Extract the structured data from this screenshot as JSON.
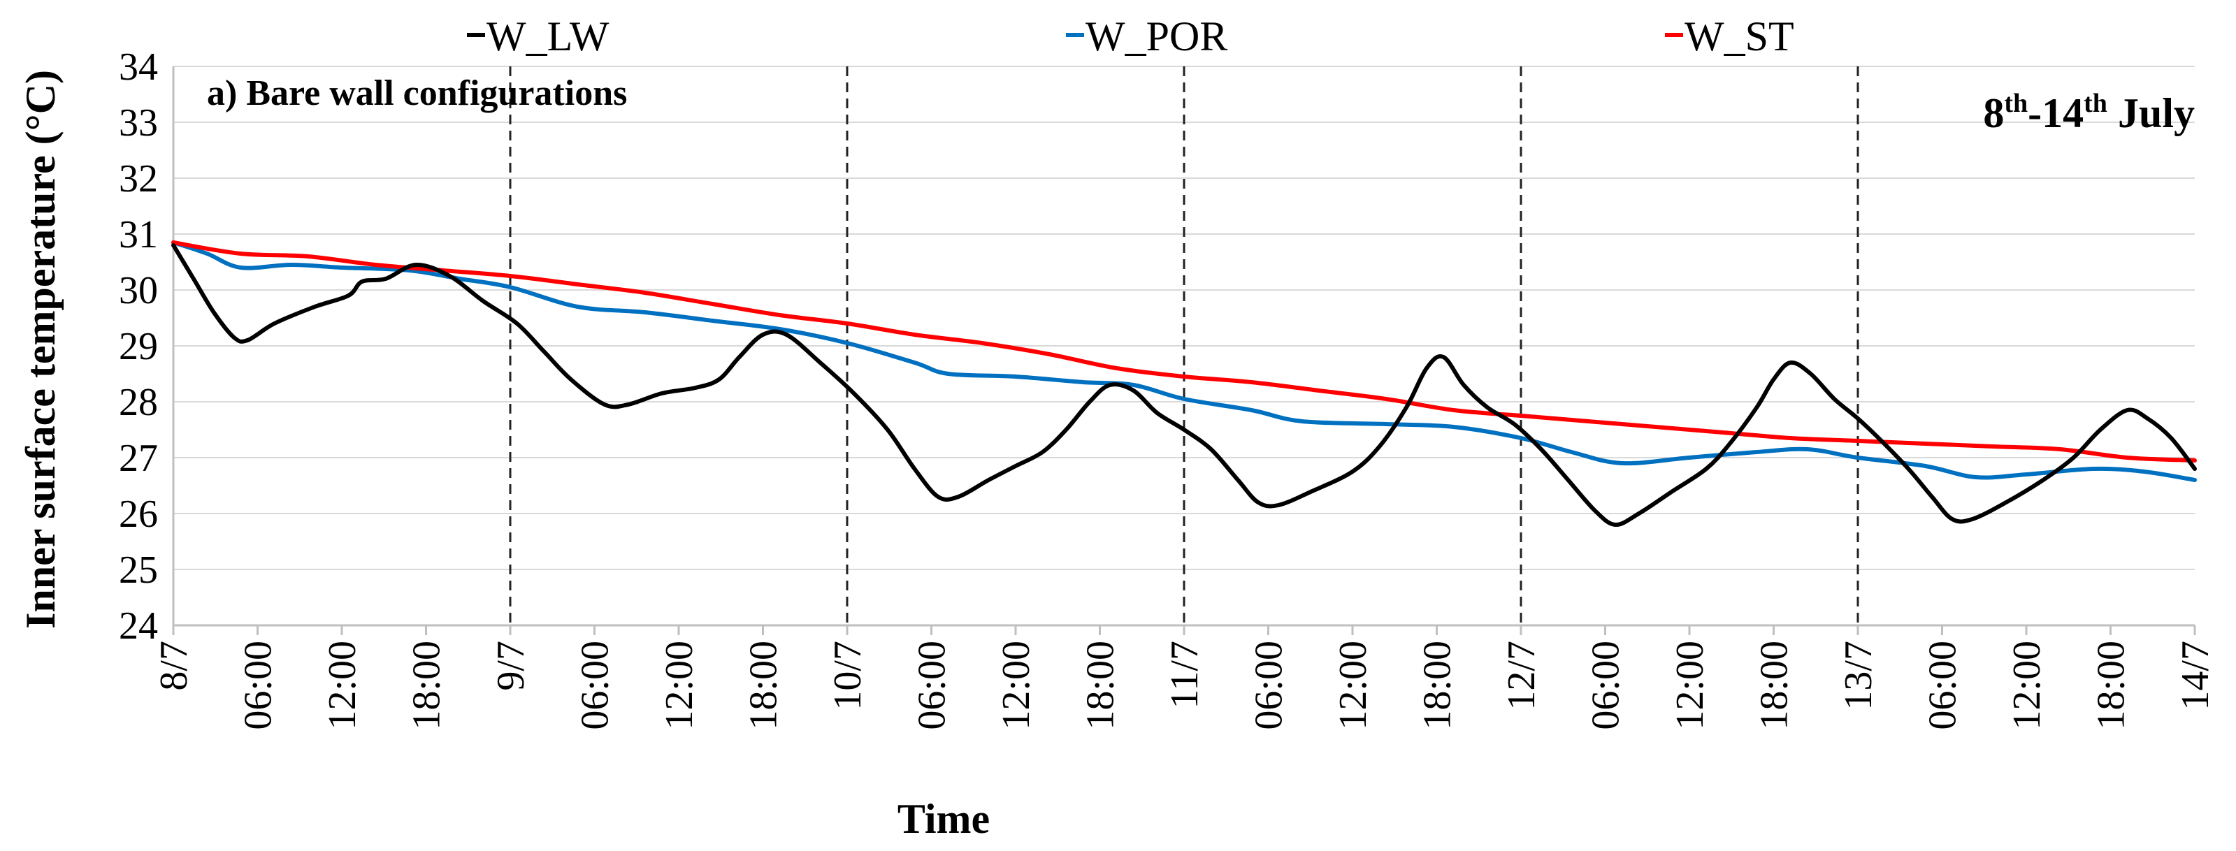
{
  "chart_data": {
    "type": "line",
    "panel_label": "a) Bare wall configurations",
    "period": {
      "start_num": "8",
      "start_sup": "th",
      "mid": "-14",
      "end_sup": "th",
      "month": " July"
    },
    "ylabel": "Inner surface temperature (°C)",
    "xlabel": "Time",
    "ylim": [
      24,
      34
    ],
    "y_ticks": [
      "24",
      "25",
      "26",
      "27",
      "28",
      "29",
      "30",
      "31",
      "32",
      "33",
      "34"
    ],
    "x_range_days": [
      8,
      14
    ],
    "x_ticks": [
      "8/7",
      "06:00",
      "12:00",
      "18:00",
      "9/7",
      "06:00",
      "12:00",
      "18:00",
      "10/7",
      "06:00",
      "12:00",
      "18:00",
      "11/7",
      "06:00",
      "12:00",
      "18:00",
      "12/7",
      "06:00",
      "12:00",
      "18:00",
      "13/7",
      "06:00",
      "12:00",
      "18:00",
      "14/7"
    ],
    "grid": "horizontal",
    "legend_position": "top",
    "series": [
      {
        "name": "W_LW",
        "color": "#000000",
        "points": [
          [
            8.0,
            30.8
          ],
          [
            8.06,
            30.2
          ],
          [
            8.12,
            29.6
          ],
          [
            8.18,
            29.15
          ],
          [
            8.22,
            29.1
          ],
          [
            8.3,
            29.4
          ],
          [
            8.42,
            29.7
          ],
          [
            8.52,
            29.9
          ],
          [
            8.56,
            30.15
          ],
          [
            8.63,
            30.2
          ],
          [
            8.72,
            30.45
          ],
          [
            8.82,
            30.25
          ],
          [
            8.92,
            29.8
          ],
          [
            9.02,
            29.4
          ],
          [
            9.1,
            28.9
          ],
          [
            9.18,
            28.4
          ],
          [
            9.28,
            27.95
          ],
          [
            9.35,
            27.95
          ],
          [
            9.45,
            28.15
          ],
          [
            9.55,
            28.25
          ],
          [
            9.62,
            28.4
          ],
          [
            9.68,
            28.8
          ],
          [
            9.75,
            29.2
          ],
          [
            9.82,
            29.2
          ],
          [
            9.92,
            28.7
          ],
          [
            10.02,
            28.15
          ],
          [
            10.12,
            27.5
          ],
          [
            10.2,
            26.8
          ],
          [
            10.27,
            26.3
          ],
          [
            10.33,
            26.3
          ],
          [
            10.42,
            26.6
          ],
          [
            10.5,
            26.85
          ],
          [
            10.58,
            27.1
          ],
          [
            10.65,
            27.5
          ],
          [
            10.72,
            28.0
          ],
          [
            10.78,
            28.3
          ],
          [
            10.85,
            28.2
          ],
          [
            10.92,
            27.8
          ],
          [
            11.0,
            27.5
          ],
          [
            11.08,
            27.15
          ],
          [
            11.16,
            26.6
          ],
          [
            11.22,
            26.2
          ],
          [
            11.28,
            26.15
          ],
          [
            11.38,
            26.4
          ],
          [
            11.5,
            26.75
          ],
          [
            11.58,
            27.2
          ],
          [
            11.66,
            27.9
          ],
          [
            11.72,
            28.6
          ],
          [
            11.77,
            28.8
          ],
          [
            11.83,
            28.3
          ],
          [
            11.9,
            27.9
          ],
          [
            11.98,
            27.6
          ],
          [
            12.06,
            27.15
          ],
          [
            12.14,
            26.6
          ],
          [
            12.22,
            26.05
          ],
          [
            12.28,
            25.8
          ],
          [
            12.35,
            26.0
          ],
          [
            12.45,
            26.4
          ],
          [
            12.55,
            26.8
          ],
          [
            12.62,
            27.25
          ],
          [
            12.7,
            27.9
          ],
          [
            12.75,
            28.4
          ],
          [
            12.8,
            28.7
          ],
          [
            12.86,
            28.5
          ],
          [
            12.93,
            28.05
          ],
          [
            13.0,
            27.7
          ],
          [
            13.07,
            27.3
          ],
          [
            13.15,
            26.8
          ],
          [
            13.22,
            26.3
          ],
          [
            13.28,
            25.9
          ],
          [
            13.34,
            25.9
          ],
          [
            13.44,
            26.2
          ],
          [
            13.55,
            26.6
          ],
          [
            13.64,
            27.0
          ],
          [
            13.72,
            27.5
          ],
          [
            13.8,
            27.85
          ],
          [
            13.86,
            27.7
          ],
          [
            13.93,
            27.35
          ],
          [
            14.0,
            26.8
          ]
        ]
      },
      {
        "name": "W_POR",
        "color": "#0070c0",
        "points": [
          [
            8.0,
            30.85
          ],
          [
            8.1,
            30.65
          ],
          [
            8.2,
            30.4
          ],
          [
            8.35,
            30.45
          ],
          [
            8.5,
            30.4
          ],
          [
            8.7,
            30.35
          ],
          [
            8.85,
            30.2
          ],
          [
            9.0,
            30.05
          ],
          [
            9.2,
            29.7
          ],
          [
            9.4,
            29.6
          ],
          [
            9.6,
            29.45
          ],
          [
            9.8,
            29.3
          ],
          [
            10.0,
            29.05
          ],
          [
            10.2,
            28.7
          ],
          [
            10.3,
            28.5
          ],
          [
            10.5,
            28.45
          ],
          [
            10.7,
            28.35
          ],
          [
            10.85,
            28.3
          ],
          [
            11.0,
            28.05
          ],
          [
            11.2,
            27.85
          ],
          [
            11.35,
            27.65
          ],
          [
            11.6,
            27.6
          ],
          [
            11.8,
            27.55
          ],
          [
            12.0,
            27.35
          ],
          [
            12.15,
            27.1
          ],
          [
            12.3,
            26.9
          ],
          [
            12.5,
            27.0
          ],
          [
            12.7,
            27.1
          ],
          [
            12.85,
            27.15
          ],
          [
            13.0,
            27.0
          ],
          [
            13.2,
            26.85
          ],
          [
            13.35,
            26.65
          ],
          [
            13.5,
            26.7
          ],
          [
            13.7,
            26.8
          ],
          [
            13.85,
            26.75
          ],
          [
            14.0,
            26.6
          ]
        ]
      },
      {
        "name": "W_ST",
        "color": "#ff0000",
        "points": [
          [
            8.0,
            30.85
          ],
          [
            8.2,
            30.65
          ],
          [
            8.4,
            30.6
          ],
          [
            8.6,
            30.45
          ],
          [
            8.8,
            30.35
          ],
          [
            9.0,
            30.25
          ],
          [
            9.2,
            30.1
          ],
          [
            9.4,
            29.95
          ],
          [
            9.6,
            29.75
          ],
          [
            9.8,
            29.55
          ],
          [
            10.0,
            29.4
          ],
          [
            10.2,
            29.2
          ],
          [
            10.4,
            29.05
          ],
          [
            10.6,
            28.85
          ],
          [
            10.8,
            28.6
          ],
          [
            11.0,
            28.45
          ],
          [
            11.2,
            28.35
          ],
          [
            11.4,
            28.2
          ],
          [
            11.6,
            28.05
          ],
          [
            11.8,
            27.85
          ],
          [
            12.0,
            27.75
          ],
          [
            12.2,
            27.65
          ],
          [
            12.4,
            27.55
          ],
          [
            12.6,
            27.45
          ],
          [
            12.8,
            27.35
          ],
          [
            13.0,
            27.3
          ],
          [
            13.2,
            27.25
          ],
          [
            13.4,
            27.2
          ],
          [
            13.6,
            27.15
          ],
          [
            13.8,
            27.0
          ],
          [
            14.0,
            26.95
          ]
        ]
      }
    ],
    "day_separators": [
      9,
      10,
      11,
      12,
      13
    ]
  }
}
